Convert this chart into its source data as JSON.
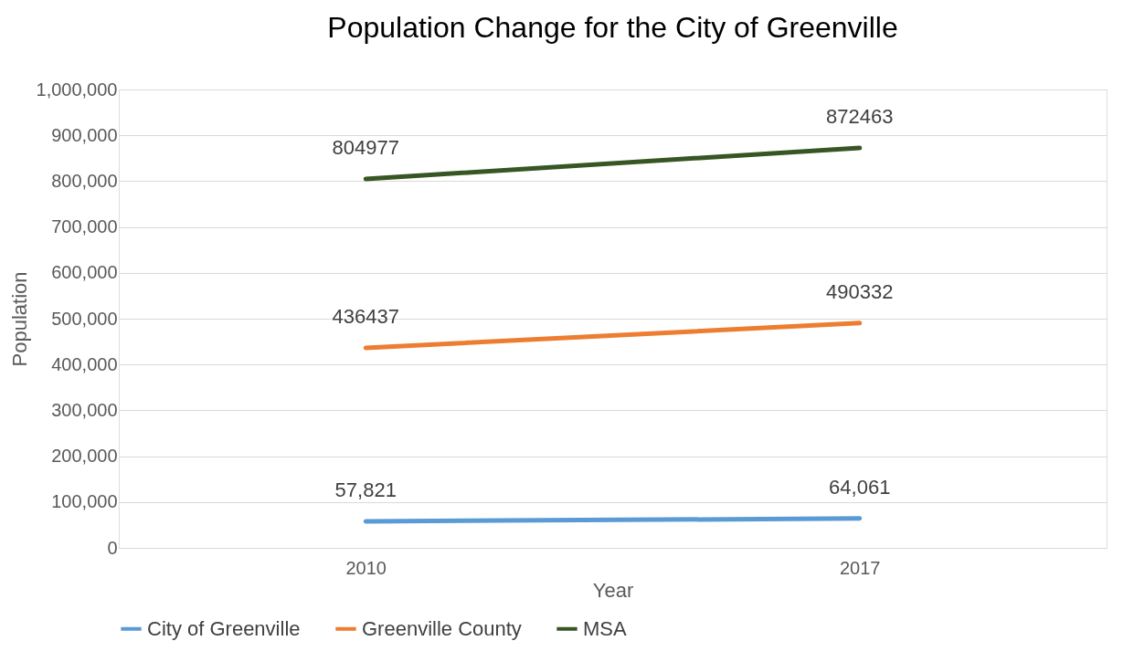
{
  "chart_data": {
    "type": "line",
    "title": "Population Change for the City of Greenville",
    "xlabel": "Year",
    "ylabel": "Population",
    "categories": [
      "2010",
      "2017"
    ],
    "series": [
      {
        "name": "City of Greenville",
        "color": "#5b9bd5",
        "values": [
          57821,
          64061
        ],
        "value_labels": [
          "57,821",
          "64,061"
        ]
      },
      {
        "name": "Greenville County",
        "color": "#ed7d31",
        "values": [
          436437,
          490332
        ],
        "value_labels": [
          "436437",
          "490332"
        ]
      },
      {
        "name": "MSA",
        "color": "#375623",
        "values": [
          804977,
          872463
        ],
        "value_labels": [
          "804977",
          "872463"
        ]
      }
    ],
    "ylim": [
      0,
      1000000
    ],
    "yticks": [
      {
        "value": 0,
        "label": "0"
      },
      {
        "value": 100000,
        "label": "100,000"
      },
      {
        "value": 200000,
        "label": "200,000"
      },
      {
        "value": 300000,
        "label": "300,000"
      },
      {
        "value": 400000,
        "label": "400,000"
      },
      {
        "value": 500000,
        "label": "500,000"
      },
      {
        "value": 600000,
        "label": "600,000"
      },
      {
        "value": 700000,
        "label": "700,000"
      },
      {
        "value": 800000,
        "label": "800,000"
      },
      {
        "value": 900000,
        "label": "900,000"
      },
      {
        "value": 1000000,
        "label": "1,000,000"
      }
    ],
    "grid": "y",
    "legend": "bottom",
    "marker": "none",
    "line_style": "solid"
  }
}
